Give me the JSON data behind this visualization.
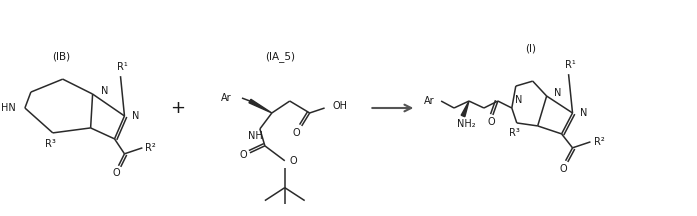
{
  "bg_color": "#ffffff",
  "line_color": "#2a2a2a",
  "text_color": "#1a1a1a",
  "figsize": [
    6.97,
    2.16
  ],
  "dpi": 100,
  "label_IB": "(IB)",
  "label_IA5": "(IA_5)",
  "label_I": "(I)",
  "plus_symbol": "+",
  "arrow_color": "#555555"
}
